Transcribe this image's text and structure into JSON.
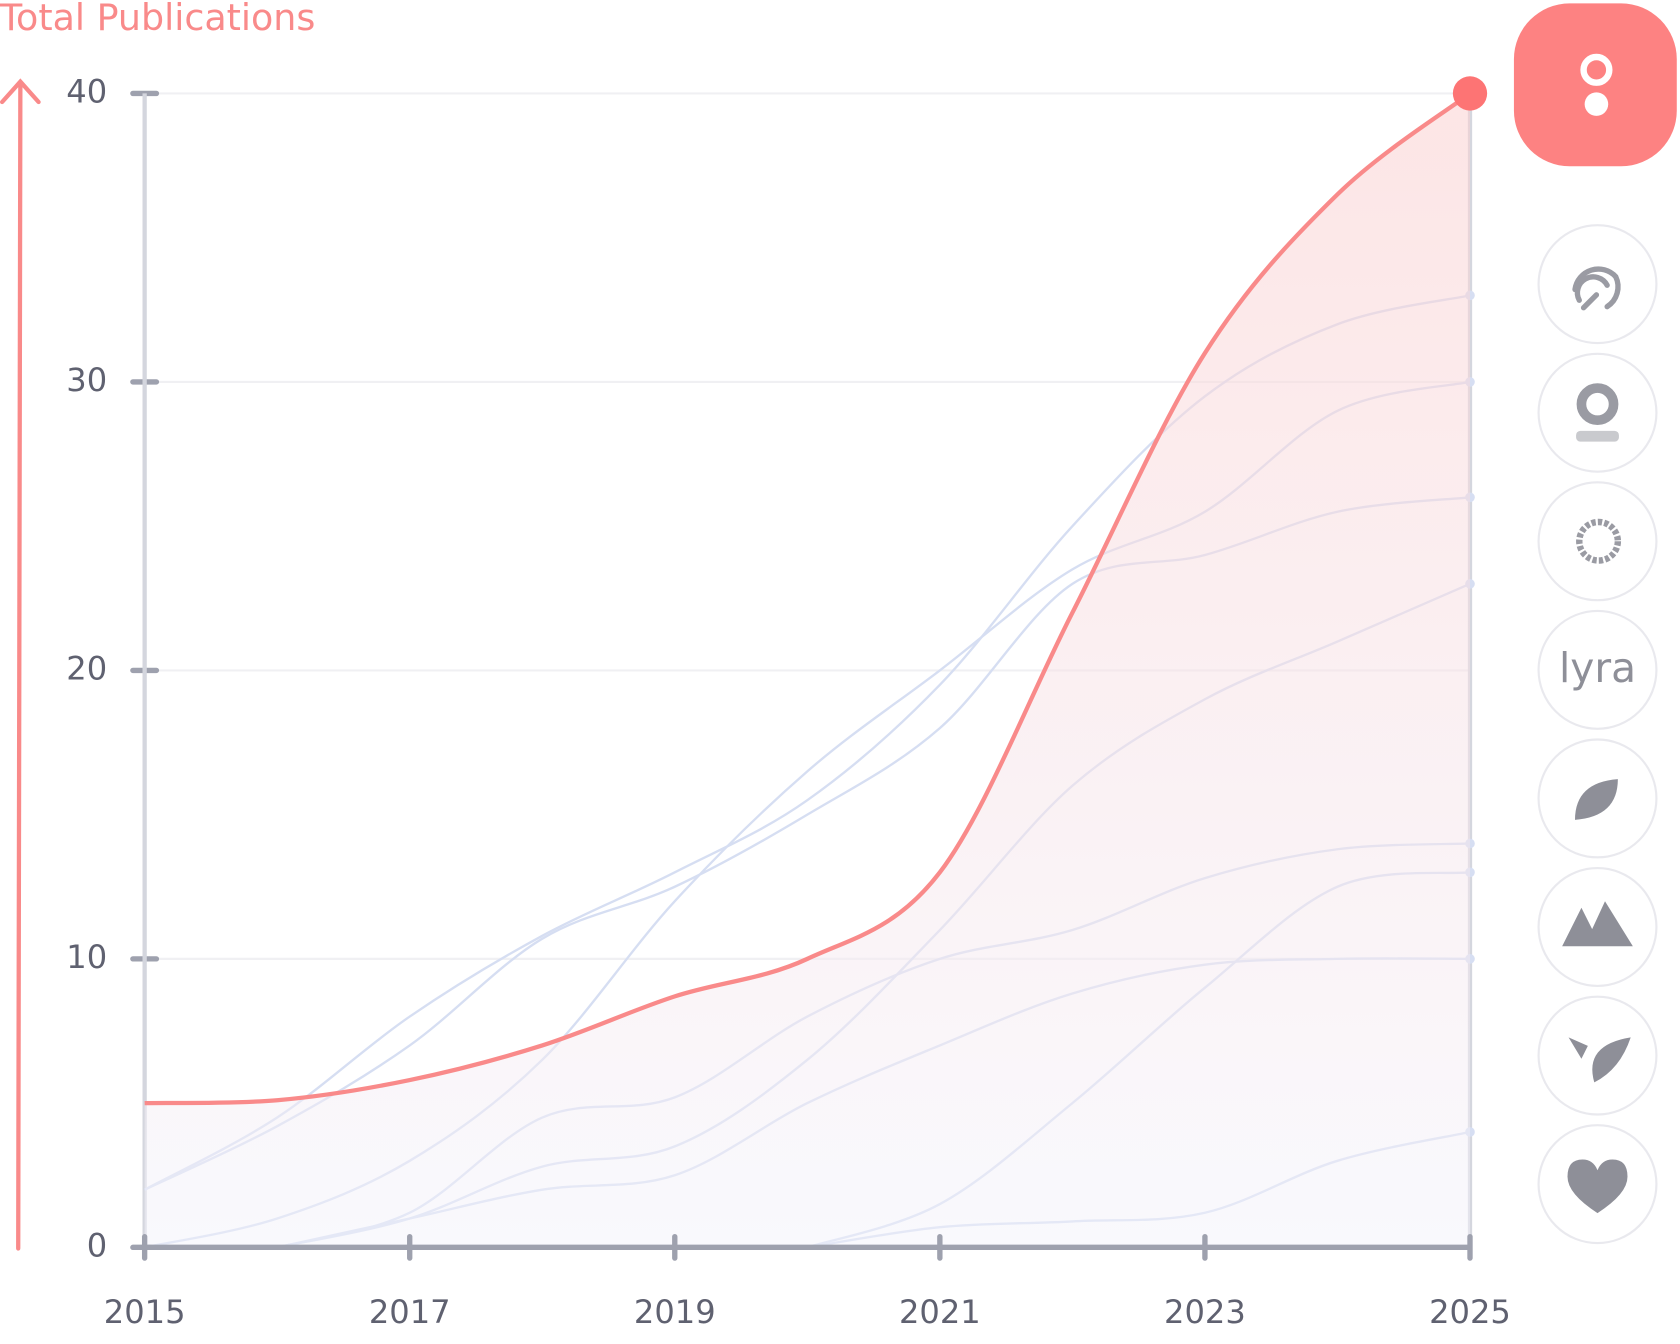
{
  "chart_data": {
    "type": "line",
    "y_label": "Total Publications",
    "x": [
      2015,
      2016,
      2017,
      2018,
      2019,
      2020,
      2021,
      2022,
      2023,
      2024,
      2025
    ],
    "xlim": [
      2015,
      2025
    ],
    "xticks": [
      2015,
      2017,
      2019,
      2021,
      2023,
      2025
    ],
    "ylim": [
      0,
      40
    ],
    "yticks": [
      0,
      10,
      20,
      30,
      40
    ],
    "grid": true,
    "series": [
      {
        "color": "#f98a8a",
        "area": true,
        "values": [
          5,
          5.1,
          5.8,
          7,
          8.7,
          10,
          13,
          22,
          31,
          36.5,
          40
        ]
      },
      {
        "color": "#d6def2",
        "values": [
          2,
          4.5,
          8,
          10.8,
          13,
          15.5,
          19.5,
          25,
          29.5,
          32,
          33
        ]
      },
      {
        "color": "#d6def2",
        "values": [
          0,
          1,
          3,
          6.5,
          12,
          16.5,
          20,
          23.5,
          25.5,
          29,
          30
        ]
      },
      {
        "color": "#d6def2",
        "values": [
          2,
          4.2,
          7,
          10.7,
          12.5,
          15,
          18,
          23,
          24,
          25.5,
          26
        ]
      },
      {
        "name": "lyra",
        "color": "#d6def2",
        "values": [
          null,
          0,
          1,
          2.8,
          3.5,
          6.5,
          11,
          16,
          19,
          21,
          23
        ]
      },
      {
        "color": "#d6def2",
        "values": [
          null,
          0,
          1.2,
          4.5,
          5.2,
          8,
          10,
          11,
          12.8,
          13.8,
          14
        ]
      },
      {
        "color": "#d6def2",
        "values": [
          null,
          null,
          null,
          null,
          null,
          0,
          1.5,
          5,
          9,
          12.5,
          13
        ]
      },
      {
        "color": "#d6def2",
        "values": [
          null,
          0,
          1,
          2,
          2.5,
          5,
          7,
          8.8,
          9.8,
          10,
          10
        ]
      },
      {
        "color": "#d6def2",
        "values": [
          null,
          null,
          null,
          null,
          null,
          0,
          0.7,
          0.9,
          1.2,
          3,
          4
        ]
      }
    ]
  }
}
